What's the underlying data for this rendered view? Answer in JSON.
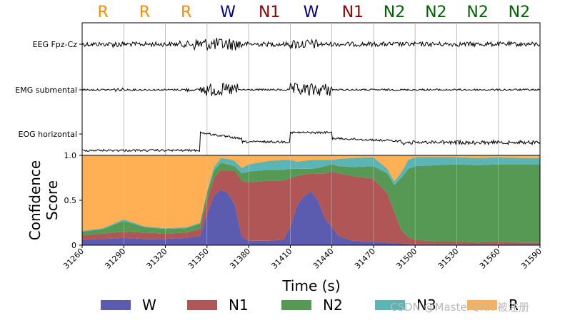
{
  "chart_data": {
    "type": "area",
    "title": "",
    "stage_labels": [
      {
        "label": "R",
        "color": "#ff8c00"
      },
      {
        "label": "R",
        "color": "#ff8c00"
      },
      {
        "label": "R",
        "color": "#ff8c00"
      },
      {
        "label": "W",
        "color": "#00008b"
      },
      {
        "label": "N1",
        "color": "#8b0000"
      },
      {
        "label": "W",
        "color": "#00008b"
      },
      {
        "label": "N1",
        "color": "#8b0000"
      },
      {
        "label": "N2",
        "color": "#006400"
      },
      {
        "label": "N2",
        "color": "#006400"
      },
      {
        "label": "N2",
        "color": "#006400"
      },
      {
        "label": "N2",
        "color": "#006400"
      }
    ],
    "signal_channels": [
      "EEG Fpz-Cz",
      "EMG submental",
      "EOG horizontal"
    ],
    "xlabel": "Time (s)",
    "ylabel": "Confidence\nScore",
    "xlim": [
      31260,
      31590
    ],
    "ylim": [
      0,
      1
    ],
    "xticks": [
      31260,
      31290,
      31320,
      31350,
      31380,
      31410,
      31440,
      31470,
      31500,
      31530,
      31560,
      31590
    ],
    "yticks": [
      0,
      0.5,
      1.0
    ],
    "ytick_labels": [
      "0",
      "0.5",
      "1.0"
    ],
    "x": [
      31260,
      31275,
      31290,
      31305,
      31320,
      31335,
      31345,
      31350,
      31355,
      31360,
      31365,
      31370,
      31375,
      31380,
      31395,
      31405,
      31410,
      31415,
      31420,
      31425,
      31430,
      31435,
      31440,
      31445,
      31455,
      31470,
      31480,
      31485,
      31490,
      31495,
      31500,
      31515,
      31530,
      31545,
      31560,
      31575,
      31590
    ],
    "series": [
      {
        "name": "W",
        "color": "#5b5bb0",
        "values": [
          0.06,
          0.07,
          0.08,
          0.07,
          0.07,
          0.08,
          0.1,
          0.35,
          0.55,
          0.62,
          0.58,
          0.45,
          0.1,
          0.05,
          0.05,
          0.06,
          0.2,
          0.45,
          0.55,
          0.6,
          0.5,
          0.3,
          0.2,
          0.1,
          0.05,
          0.04,
          0.03,
          0.02,
          0.02,
          0.01,
          0.01,
          0.01,
          0.01,
          0.01,
          0.01,
          0.01,
          0.01
        ]
      },
      {
        "name": "N1",
        "color": "#b05656",
        "values": [
          0.05,
          0.06,
          0.07,
          0.07,
          0.06,
          0.06,
          0.08,
          0.15,
          0.2,
          0.22,
          0.25,
          0.38,
          0.62,
          0.65,
          0.67,
          0.66,
          0.55,
          0.32,
          0.24,
          0.2,
          0.3,
          0.5,
          0.62,
          0.7,
          0.72,
          0.7,
          0.55,
          0.35,
          0.15,
          0.08,
          0.05,
          0.03,
          0.03,
          0.02,
          0.03,
          0.02,
          0.02
        ]
      },
      {
        "name": "N2",
        "color": "#559955",
        "values": [
          0.04,
          0.05,
          0.12,
          0.06,
          0.05,
          0.05,
          0.06,
          0.08,
          0.08,
          0.08,
          0.07,
          0.05,
          0.08,
          0.12,
          0.12,
          0.12,
          0.1,
          0.08,
          0.06,
          0.05,
          0.06,
          0.08,
          0.08,
          0.08,
          0.1,
          0.14,
          0.22,
          0.3,
          0.58,
          0.76,
          0.82,
          0.85,
          0.86,
          0.86,
          0.86,
          0.87,
          0.87
        ]
      },
      {
        "name": "N3",
        "color": "#5bb5b5",
        "values": [
          0.01,
          0.01,
          0.02,
          0.01,
          0.01,
          0.01,
          0.01,
          0.02,
          0.04,
          0.05,
          0.06,
          0.06,
          0.06,
          0.08,
          0.1,
          0.11,
          0.1,
          0.08,
          0.09,
          0.1,
          0.09,
          0.07,
          0.05,
          0.08,
          0.1,
          0.1,
          0.05,
          0.04,
          0.06,
          0.1,
          0.1,
          0.09,
          0.08,
          0.08,
          0.08,
          0.07,
          0.07
        ]
      },
      {
        "name": "R",
        "color": "#ffb055",
        "values": [
          0.84,
          0.81,
          0.71,
          0.79,
          0.81,
          0.8,
          0.75,
          0.4,
          0.13,
          0.03,
          0.04,
          0.06,
          0.14,
          0.1,
          0.06,
          0.05,
          0.05,
          0.07,
          0.06,
          0.05,
          0.05,
          0.05,
          0.05,
          0.04,
          0.03,
          0.02,
          0.15,
          0.29,
          0.19,
          0.05,
          0.02,
          0.02,
          0.02,
          0.03,
          0.02,
          0.03,
          0.03
        ]
      }
    ],
    "legend": {
      "placement": "bottom",
      "entries": [
        "W",
        "N1",
        "N2",
        "N3",
        "R"
      ]
    },
    "grid": true
  },
  "watermark": "CSDN @MasterQKK 被注册"
}
